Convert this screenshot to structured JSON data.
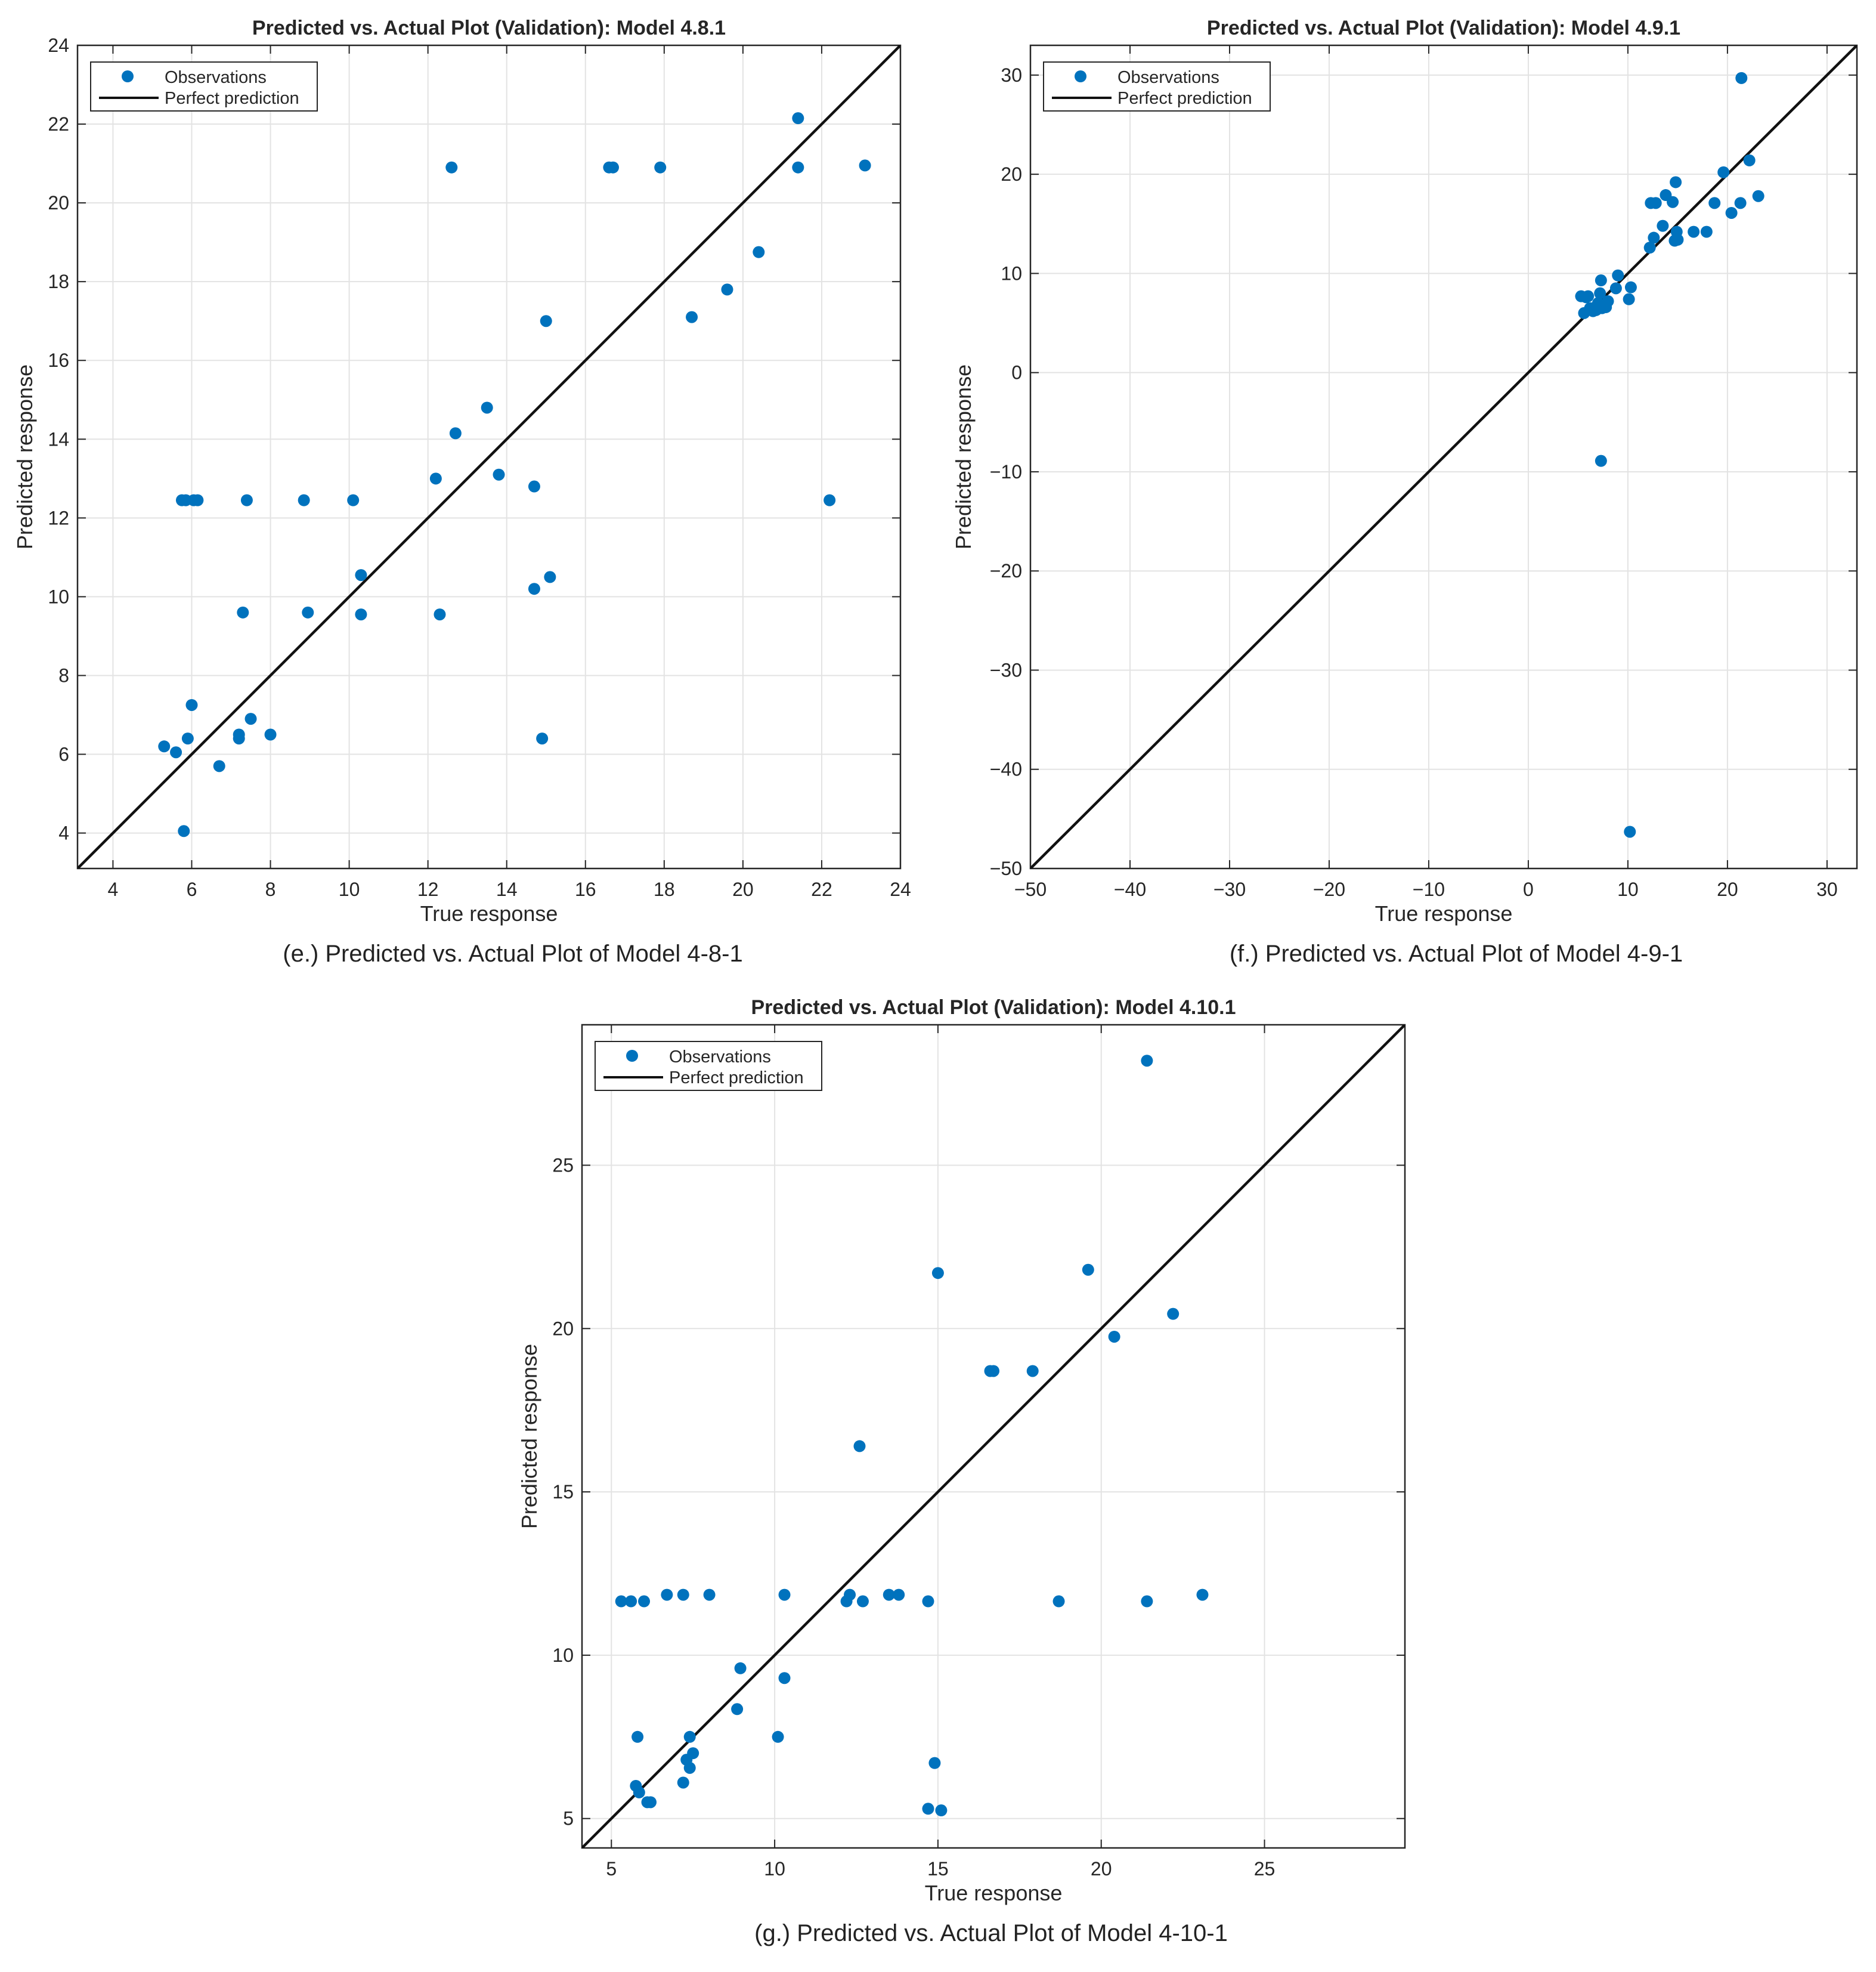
{
  "figure": {
    "caption_color": "#222222",
    "marker_color": "#0072BD",
    "line_color": "#111111",
    "grid_color": "#e3e3e3"
  },
  "chart_data": [
    {
      "id": "e",
      "type": "scatter",
      "title": "Predicted vs. Actual Plot (Validation): Model 4.8.1",
      "caption": "(e.) Predicted vs. Actual Plot of Model 4-8-1",
      "xlabel": "True response",
      "ylabel": "Predicted response",
      "xlim": [
        3.1,
        24
      ],
      "ylim": [
        3.1,
        24
      ],
      "xticks": [
        4,
        6,
        8,
        10,
        12,
        14,
        16,
        18,
        20,
        22,
        24
      ],
      "yticks": [
        4,
        6,
        8,
        10,
        12,
        14,
        16,
        18,
        20,
        22,
        24
      ],
      "xtick_labels": [
        "4",
        "6",
        "8",
        "10",
        "12",
        "14",
        "16",
        "18",
        "20",
        "22",
        "24"
      ],
      "ytick_labels": [
        "4",
        "6",
        "8",
        "10",
        "12",
        "14",
        "16",
        "18",
        "20",
        "22",
        "24"
      ],
      "legend": {
        "position": "top-left",
        "entries": [
          "Observations",
          "Perfect prediction"
        ]
      },
      "reference_line": {
        "name": "Perfect prediction",
        "from": [
          3.1,
          3.1
        ],
        "to": [
          24,
          24
        ]
      },
      "series": [
        {
          "name": "Observations",
          "points": [
            [
              5.3,
              6.2
            ],
            [
              5.6,
              6.05
            ],
            [
              5.75,
              12.45
            ],
            [
              5.8,
              4.05
            ],
            [
              5.85,
              12.45
            ],
            [
              5.9,
              6.4
            ],
            [
              6.0,
              7.25
            ],
            [
              6.05,
              12.45
            ],
            [
              6.15,
              12.45
            ],
            [
              6.7,
              5.7
            ],
            [
              7.2,
              6.5
            ],
            [
              7.2,
              6.4
            ],
            [
              7.3,
              9.6
            ],
            [
              7.4,
              12.45
            ],
            [
              7.5,
              6.9
            ],
            [
              8.0,
              6.5
            ],
            [
              8.85,
              12.45
            ],
            [
              8.95,
              9.6
            ],
            [
              10.1,
              12.45
            ],
            [
              10.3,
              10.55
            ],
            [
              10.3,
              9.55
            ],
            [
              12.2,
              13.0
            ],
            [
              12.3,
              9.55
            ],
            [
              12.6,
              20.9
            ],
            [
              12.7,
              14.15
            ],
            [
              13.5,
              14.8
            ],
            [
              13.8,
              13.1
            ],
            [
              14.7,
              12.8
            ],
            [
              14.7,
              10.2
            ],
            [
              14.9,
              6.4
            ],
            [
              15.0,
              17.0
            ],
            [
              15.1,
              10.5
            ],
            [
              16.6,
              20.9
            ],
            [
              16.7,
              20.9
            ],
            [
              17.9,
              20.9
            ],
            [
              18.7,
              17.1
            ],
            [
              19.6,
              17.8
            ],
            [
              20.4,
              18.75
            ],
            [
              21.4,
              22.15
            ],
            [
              21.4,
              20.9
            ],
            [
              22.2,
              12.45
            ],
            [
              23.1,
              20.95
            ]
          ]
        }
      ]
    },
    {
      "id": "f",
      "type": "scatter",
      "title": "Predicted vs. Actual Plot (Validation): Model 4.9.1",
      "caption": "(f.) Predicted vs. Actual Plot of Model 4-9-1",
      "xlabel": "True response",
      "ylabel": "Predicted response",
      "xlim": [
        -50,
        33
      ],
      "ylim": [
        -50,
        33
      ],
      "xticks": [
        -50,
        -40,
        -30,
        -20,
        -10,
        0,
        10,
        20,
        30
      ],
      "yticks": [
        -50,
        -40,
        -30,
        -20,
        -10,
        0,
        10,
        20,
        30
      ],
      "xtick_labels": [
        "−50",
        "−40",
        "−30",
        "−20",
        "−10",
        "0",
        "10",
        "20",
        "30"
      ],
      "ytick_labels": [
        "−50",
        "−40",
        "−30",
        "−20",
        "−10",
        "0",
        "10",
        "20",
        "30"
      ],
      "legend": {
        "position": "top-left",
        "entries": [
          "Observations",
          "Perfect prediction"
        ]
      },
      "reference_line": {
        "name": "Perfect prediction",
        "from": [
          -50,
          -50
        ],
        "to": [
          33,
          33
        ]
      },
      "series": [
        {
          "name": "Observations",
          "points": [
            [
              5.3,
              7.7
            ],
            [
              5.6,
              6.0
            ],
            [
              5.8,
              7.6
            ],
            [
              6.0,
              7.7
            ],
            [
              6.2,
              6.5
            ],
            [
              6.5,
              6.2
            ],
            [
              6.8,
              6.3
            ],
            [
              7.0,
              7.0
            ],
            [
              7.2,
              8.0
            ],
            [
              7.3,
              9.3
            ],
            [
              7.4,
              6.5
            ],
            [
              7.8,
              6.6
            ],
            [
              8.0,
              7.2
            ],
            [
              8.8,
              8.5
            ],
            [
              9.0,
              9.8
            ],
            [
              10.1,
              7.4
            ],
            [
              10.3,
              8.6
            ],
            [
              7.3,
              -8.9
            ],
            [
              10.2,
              -46.3
            ],
            [
              12.2,
              12.6
            ],
            [
              12.3,
              17.1
            ],
            [
              12.6,
              13.6
            ],
            [
              12.8,
              17.1
            ],
            [
              13.5,
              14.8
            ],
            [
              13.8,
              17.9
            ],
            [
              14.5,
              17.2
            ],
            [
              14.7,
              13.3
            ],
            [
              14.8,
              19.2
            ],
            [
              14.9,
              14.2
            ],
            [
              15.0,
              13.4
            ],
            [
              16.6,
              14.2
            ],
            [
              17.9,
              14.2
            ],
            [
              18.7,
              17.1
            ],
            [
              19.6,
              20.2
            ],
            [
              20.4,
              16.1
            ],
            [
              21.3,
              17.1
            ],
            [
              21.4,
              29.7
            ],
            [
              22.2,
              21.4
            ],
            [
              23.1,
              17.8
            ]
          ]
        }
      ]
    },
    {
      "id": "g",
      "type": "scatter",
      "title": "Predicted vs. Actual Plot (Validation): Model 4.10.1",
      "caption": "(g.) Predicted vs. Actual Plot of Model 4-10-1",
      "xlabel": "True response",
      "ylabel": "Predicted response",
      "xlim": [
        4.1,
        29.3
      ],
      "ylim": [
        4.1,
        29.3
      ],
      "xticks": [
        5,
        10,
        15,
        20,
        25
      ],
      "yticks": [
        5,
        10,
        15,
        20,
        25
      ],
      "xtick_labels": [
        "5",
        "10",
        "15",
        "20",
        "25"
      ],
      "ytick_labels": [
        "5",
        "10",
        "15",
        "20",
        "25"
      ],
      "legend": {
        "position": "top-left",
        "entries": [
          "Observations",
          "Perfect prediction"
        ]
      },
      "reference_line": {
        "name": "Perfect prediction",
        "from": [
          4.1,
          4.1
        ],
        "to": [
          29.3,
          29.3
        ]
      },
      "series": [
        {
          "name": "Observations",
          "points": [
            [
              5.3,
              11.65
            ],
            [
              5.6,
              11.65
            ],
            [
              5.75,
              6.0
            ],
            [
              5.8,
              7.5
            ],
            [
              5.85,
              5.8
            ],
            [
              6.0,
              11.65
            ],
            [
              6.1,
              5.5
            ],
            [
              6.2,
              5.5
            ],
            [
              6.7,
              11.85
            ],
            [
              7.2,
              11.85
            ],
            [
              7.2,
              6.1
            ],
            [
              7.3,
              6.8
            ],
            [
              7.4,
              6.55
            ],
            [
              7.4,
              7.5
            ],
            [
              7.5,
              7.0
            ],
            [
              8.0,
              11.85
            ],
            [
              8.85,
              8.35
            ],
            [
              8.95,
              9.6
            ],
            [
              10.1,
              7.5
            ],
            [
              10.3,
              9.3
            ],
            [
              10.3,
              11.85
            ],
            [
              12.2,
              11.65
            ],
            [
              12.3,
              11.85
            ],
            [
              12.6,
              16.4
            ],
            [
              12.7,
              11.65
            ],
            [
              13.5,
              11.85
            ],
            [
              13.8,
              11.85
            ],
            [
              14.7,
              11.65
            ],
            [
              14.7,
              5.3
            ],
            [
              14.9,
              6.7
            ],
            [
              15.0,
              21.7
            ],
            [
              15.1,
              5.25
            ],
            [
              16.6,
              18.7
            ],
            [
              16.7,
              18.7
            ],
            [
              17.9,
              18.7
            ],
            [
              18.7,
              11.65
            ],
            [
              19.6,
              21.8
            ],
            [
              20.4,
              19.75
            ],
            [
              21.4,
              28.2
            ],
            [
              21.4,
              11.65
            ],
            [
              22.2,
              20.45
            ],
            [
              23.1,
              11.85
            ]
          ]
        }
      ]
    }
  ]
}
